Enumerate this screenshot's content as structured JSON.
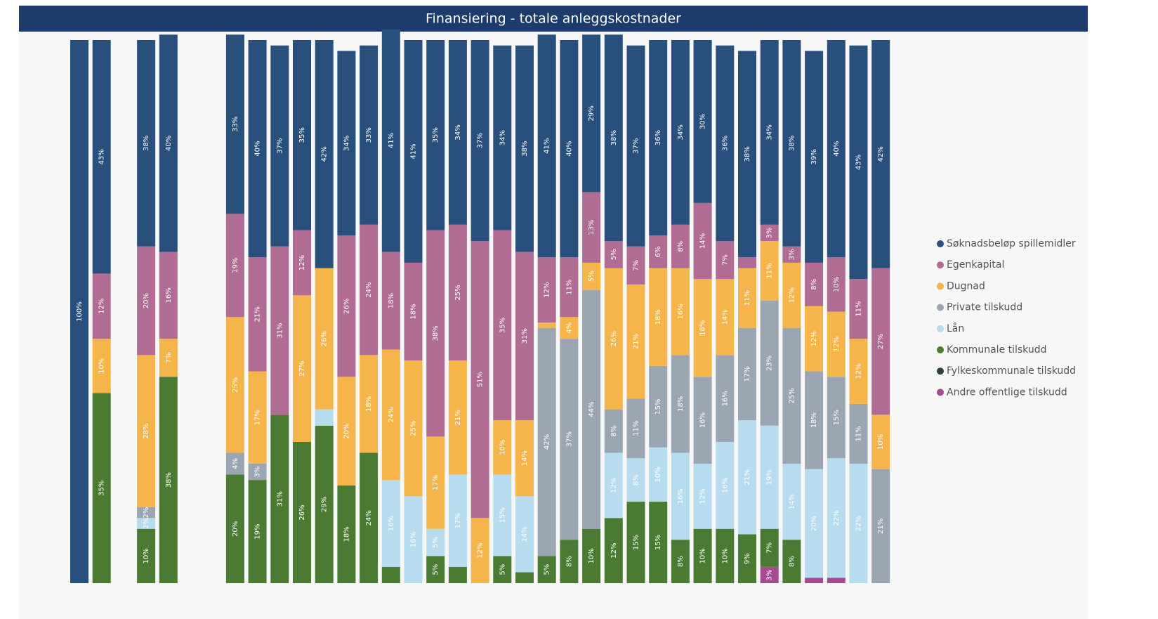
{
  "chart_data": {
    "type": "stacked_bar_100",
    "title": "Finansiering - totale anleggskostnader",
    "series": [
      {
        "name": "Søknadsbeløp spillemidler",
        "color": "#29507d",
        "values": [
          100,
          43,
          null,
          38,
          40,
          null,
          null,
          33,
          40,
          37,
          35,
          42,
          34,
          33,
          41,
          41,
          35,
          34,
          37,
          34,
          38,
          41,
          40,
          29,
          38,
          37,
          36,
          34,
          30,
          36,
          38,
          34,
          38,
          39,
          40,
          43,
          42
        ],
        "value_labels": [
          "100%",
          "43%",
          null,
          "38%",
          "40%",
          null,
          null,
          "33%",
          "40%",
          "37%",
          "35%",
          "42%",
          "34%",
          "33%",
          "41%",
          "41%",
          "35%",
          "34%",
          "37%",
          "34%",
          "38%",
          "41%",
          "40%",
          "29%",
          "38%",
          "37%",
          "36%",
          "34%",
          "30%",
          "36%",
          "38%",
          "34%",
          "38%",
          "39%",
          "40%",
          "43%",
          "42%"
        ]
      },
      {
        "name": "Egenkapital",
        "color": "#b06c93",
        "values": [
          null,
          12,
          null,
          20,
          16,
          null,
          null,
          19,
          21,
          31,
          12,
          null,
          26,
          24,
          18,
          18,
          38,
          25,
          51,
          35,
          31,
          12,
          11,
          13,
          5,
          7,
          6,
          8,
          14,
          7,
          2,
          3,
          3,
          8,
          10,
          11,
          27
        ],
        "value_labels": [
          null,
          "12%",
          null,
          "20%",
          "16%",
          null,
          null,
          "19%",
          "21%",
          "31%",
          "12%",
          null,
          "26%",
          "24%",
          "18%",
          "18%",
          "38%",
          "25%",
          "51%",
          "35%",
          "31%",
          "12%",
          "11%",
          "13%",
          "5%",
          "7%",
          "6%",
          "8%",
          "14%",
          "7%",
          null,
          "3%",
          "3%",
          "8%",
          "10%",
          "11%",
          "27%"
        ]
      },
      {
        "name": "Dugnad",
        "color": "#f5b54b",
        "values": [
          null,
          10,
          null,
          28,
          7,
          null,
          null,
          25,
          17,
          null,
          27,
          26,
          20,
          18,
          24,
          25,
          17,
          21,
          12,
          10,
          14,
          1,
          4,
          5,
          26,
          21,
          18,
          16,
          18,
          14,
          11,
          11,
          12,
          12,
          12,
          12,
          10
        ],
        "value_labels": [
          null,
          "10%",
          null,
          "28%",
          "7%",
          null,
          null,
          "25%",
          "17%",
          null,
          "27%",
          "26%",
          "20%",
          "18%",
          "24%",
          "25%",
          "17%",
          "21%",
          "12%",
          "10%",
          "14%",
          null,
          "4%",
          "5%",
          "26%",
          "21%",
          "18%",
          "16%",
          "18%",
          "14%",
          "11%",
          "11%",
          "12%",
          "12%",
          "12%",
          "12%",
          "10%"
        ]
      },
      {
        "name": "Private tilskudd",
        "color": "#9ba6b2",
        "values": [
          null,
          null,
          null,
          2,
          null,
          null,
          null,
          4,
          3,
          null,
          null,
          null,
          null,
          null,
          null,
          null,
          null,
          null,
          null,
          null,
          null,
          42,
          37,
          44,
          8,
          11,
          15,
          18,
          16,
          16,
          17,
          23,
          25,
          18,
          15,
          11,
          21
        ],
        "value_labels": [
          null,
          null,
          null,
          "2%",
          null,
          null,
          null,
          "4%",
          "3%",
          null,
          null,
          null,
          null,
          null,
          null,
          null,
          null,
          null,
          null,
          null,
          null,
          "42%",
          "37%",
          "44%",
          "8%",
          "11%",
          "15%",
          "18%",
          "16%",
          "16%",
          "17%",
          "23%",
          "25%",
          "18%",
          "15%",
          "11%",
          "21%"
        ]
      },
      {
        "name": "Lån",
        "color": "#b7dcef",
        "values": [
          null,
          null,
          null,
          2,
          null,
          null,
          null,
          null,
          null,
          null,
          null,
          3,
          null,
          null,
          16,
          16,
          5,
          17,
          null,
          15,
          14,
          null,
          null,
          null,
          12,
          8,
          10,
          16,
          12,
          16,
          21,
          19,
          14,
          20,
          22,
          22,
          null
        ],
        "value_labels": [
          null,
          null,
          null,
          "2%",
          null,
          null,
          null,
          null,
          null,
          null,
          null,
          null,
          null,
          null,
          "16%",
          "16%",
          "5%",
          "17%",
          null,
          "15%",
          "14%",
          null,
          null,
          null,
          "12%",
          "8%",
          "10%",
          "16%",
          "12%",
          "16%",
          "21%",
          "19%",
          "14%",
          "20%",
          "22%",
          "22%",
          null
        ]
      },
      {
        "name": "Kommunale tilskudd",
        "color": "#4b7a33",
        "values": [
          null,
          35,
          null,
          10,
          38,
          null,
          null,
          20,
          19,
          31,
          26,
          29,
          18,
          24,
          3,
          null,
          5,
          3,
          null,
          5,
          2,
          5,
          8,
          10,
          12,
          15,
          15,
          8,
          10,
          10,
          9,
          7,
          8,
          null,
          null,
          null,
          null
        ],
        "value_labels": [
          null,
          "35%",
          null,
          "10%",
          "38%",
          null,
          null,
          "20%",
          "19%",
          "31%",
          "26%",
          "29%",
          "18%",
          "24%",
          null,
          null,
          "5%",
          null,
          null,
          "5%",
          null,
          "5%",
          "8%",
          "10%",
          "12%",
          "15%",
          "15%",
          "8%",
          "10%",
          "10%",
          "9%",
          "7%",
          "8%",
          null,
          null,
          null,
          null
        ]
      },
      {
        "name": "Fylkeskommunale tilskudd",
        "color": "#2f4040",
        "values": [
          null,
          null,
          null,
          null,
          null,
          null,
          null,
          null,
          null,
          null,
          null,
          null,
          null,
          null,
          null,
          null,
          null,
          null,
          null,
          null,
          null,
          null,
          null,
          null,
          null,
          null,
          null,
          null,
          null,
          null,
          null,
          null,
          null,
          null,
          null,
          null,
          null
        ]
      },
      {
        "name": "Andre offentlige tilskudd",
        "color": "#a9498f",
        "values": [
          null,
          null,
          null,
          null,
          null,
          null,
          null,
          null,
          null,
          null,
          null,
          null,
          null,
          null,
          null,
          null,
          null,
          null,
          null,
          null,
          null,
          null,
          null,
          null,
          null,
          null,
          null,
          null,
          null,
          null,
          null,
          3,
          null,
          1,
          1,
          null,
          null
        ],
        "value_labels": [
          null,
          null,
          null,
          null,
          null,
          null,
          null,
          null,
          null,
          null,
          null,
          null,
          null,
          null,
          null,
          null,
          null,
          null,
          null,
          null,
          null,
          null,
          null,
          null,
          null,
          null,
          null,
          null,
          null,
          null,
          null,
          "3%",
          null,
          null,
          null,
          null,
          null
        ]
      }
    ]
  }
}
